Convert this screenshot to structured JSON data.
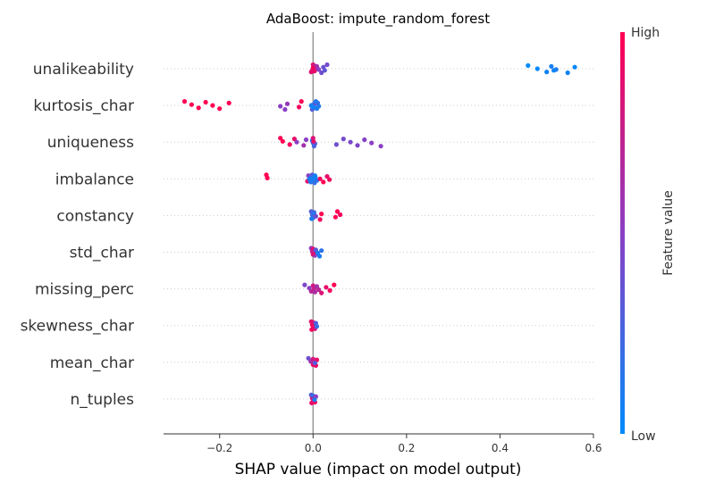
{
  "chart_data": {
    "type": "scatter",
    "title": "AdaBoost: impute_random_forest",
    "xlabel": "SHAP value (impact on model output)",
    "xlim": [
      -0.32,
      0.6
    ],
    "xticks": [
      -0.2,
      0.0,
      0.2,
      0.4,
      0.6
    ],
    "xtick_labels": [
      "−0.2",
      "0.0",
      "0.2",
      "0.4",
      "0.6"
    ],
    "colorbar": {
      "label": "Feature value",
      "high_label": "High",
      "low_label": "Low",
      "low_color": "#008bfb",
      "high_color": "#ff0052"
    },
    "features": [
      {
        "name": "unalikeability",
        "points": [
          {
            "x": 0.0,
            "v": 0.9
          },
          {
            "x": 0.0,
            "v": 0.85
          },
          {
            "x": -0.003,
            "v": 0.8
          },
          {
            "x": 0.002,
            "v": 0.75
          },
          {
            "x": 0.005,
            "v": 0.7
          },
          {
            "x": -0.004,
            "v": 0.88
          },
          {
            "x": 0.008,
            "v": 0.6
          },
          {
            "x": 0.012,
            "v": 0.5
          },
          {
            "x": 0.018,
            "v": 0.4
          },
          {
            "x": 0.022,
            "v": 0.38
          },
          {
            "x": 0.025,
            "v": 0.35
          },
          {
            "x": 0.03,
            "v": 0.42
          },
          {
            "x": 0.0,
            "v": 0.95
          },
          {
            "x": 0.003,
            "v": 0.9
          },
          {
            "x": 0.46,
            "v": 0.0
          },
          {
            "x": 0.48,
            "v": 0.02
          },
          {
            "x": 0.5,
            "v": 0.05
          },
          {
            "x": 0.51,
            "v": 0.08
          },
          {
            "x": 0.52,
            "v": 0.1
          },
          {
            "x": 0.545,
            "v": 0.05
          },
          {
            "x": 0.56,
            "v": 0.02
          },
          {
            "x": 0.515,
            "v": 0.06
          }
        ]
      },
      {
        "name": "kurtosis_char",
        "points": [
          {
            "x": -0.275,
            "v": 1.0
          },
          {
            "x": -0.26,
            "v": 1.0
          },
          {
            "x": -0.245,
            "v": 1.0
          },
          {
            "x": -0.23,
            "v": 1.0
          },
          {
            "x": -0.215,
            "v": 1.0
          },
          {
            "x": -0.2,
            "v": 1.0
          },
          {
            "x": -0.18,
            "v": 1.0
          },
          {
            "x": -0.07,
            "v": 0.5
          },
          {
            "x": -0.06,
            "v": 0.5
          },
          {
            "x": -0.055,
            "v": 0.55
          },
          {
            "x": -0.03,
            "v": 0.95
          },
          {
            "x": -0.025,
            "v": 1.0
          },
          {
            "x": 0.0,
            "v": 0.1
          },
          {
            "x": 0.003,
            "v": 0.15
          },
          {
            "x": 0.005,
            "v": 0.05
          },
          {
            "x": -0.004,
            "v": 0.1
          },
          {
            "x": 0.008,
            "v": 0.1
          },
          {
            "x": 0.01,
            "v": 0.2
          },
          {
            "x": 0.012,
            "v": 0.1
          },
          {
            "x": -0.002,
            "v": 0.3
          },
          {
            "x": 0.004,
            "v": 0.35
          },
          {
            "x": 0.0,
            "v": 0.05
          },
          {
            "x": 0.006,
            "v": 0.12
          }
        ]
      },
      {
        "name": "uniqueness",
        "points": [
          {
            "x": -0.07,
            "v": 1.0
          },
          {
            "x": -0.065,
            "v": 1.0
          },
          {
            "x": -0.05,
            "v": 0.95
          },
          {
            "x": -0.04,
            "v": 0.9
          },
          {
            "x": -0.035,
            "v": 0.5
          },
          {
            "x": -0.02,
            "v": 0.6
          },
          {
            "x": -0.015,
            "v": 0.5
          },
          {
            "x": 0.0,
            "v": 0.2
          },
          {
            "x": 0.002,
            "v": 0.25
          },
          {
            "x": -0.002,
            "v": 0.15
          },
          {
            "x": 0.004,
            "v": 0.3
          },
          {
            "x": 0.0,
            "v": 0.85
          },
          {
            "x": 0.001,
            "v": 0.9
          },
          {
            "x": 0.05,
            "v": 0.4
          },
          {
            "x": 0.065,
            "v": 0.42
          },
          {
            "x": 0.08,
            "v": 0.45
          },
          {
            "x": 0.095,
            "v": 0.46
          },
          {
            "x": 0.11,
            "v": 0.48
          },
          {
            "x": 0.125,
            "v": 0.5
          },
          {
            "x": 0.145,
            "v": 0.5
          }
        ]
      },
      {
        "name": "imbalance",
        "points": [
          {
            "x": -0.1,
            "v": 1.0
          },
          {
            "x": -0.098,
            "v": 1.0
          },
          {
            "x": -0.012,
            "v": 0.9
          },
          {
            "x": -0.01,
            "v": 0.5
          },
          {
            "x": -0.008,
            "v": 0.1
          },
          {
            "x": -0.005,
            "v": 0.15
          },
          {
            "x": -0.003,
            "v": 0.05
          },
          {
            "x": 0.0,
            "v": 0.1
          },
          {
            "x": 0.003,
            "v": 0.2
          },
          {
            "x": 0.005,
            "v": 0.1
          },
          {
            "x": 0.008,
            "v": 0.15
          },
          {
            "x": -0.002,
            "v": 0.3
          },
          {
            "x": 0.002,
            "v": 0.05
          },
          {
            "x": -0.006,
            "v": 0.12
          },
          {
            "x": 0.004,
            "v": 0.08
          },
          {
            "x": 0.015,
            "v": 0.95
          },
          {
            "x": 0.022,
            "v": 1.0
          },
          {
            "x": 0.03,
            "v": 0.9
          },
          {
            "x": 0.035,
            "v": 0.95
          }
        ]
      },
      {
        "name": "constancy",
        "points": [
          {
            "x": -0.004,
            "v": 0.3
          },
          {
            "x": -0.002,
            "v": 0.25
          },
          {
            "x": 0.0,
            "v": 0.2
          },
          {
            "x": 0.002,
            "v": 0.3
          },
          {
            "x": 0.004,
            "v": 0.35
          },
          {
            "x": -0.003,
            "v": 0.1
          },
          {
            "x": 0.001,
            "v": 0.15
          },
          {
            "x": 0.006,
            "v": 0.4
          },
          {
            "x": 0.015,
            "v": 0.95
          },
          {
            "x": 0.018,
            "v": 1.0
          },
          {
            "x": 0.048,
            "v": 1.0
          },
          {
            "x": 0.052,
            "v": 1.0
          },
          {
            "x": 0.058,
            "v": 0.95
          }
        ]
      },
      {
        "name": "std_char",
        "points": [
          {
            "x": -0.004,
            "v": 0.5
          },
          {
            "x": -0.002,
            "v": 0.7
          },
          {
            "x": 0.0,
            "v": 0.8
          },
          {
            "x": 0.0,
            "v": 0.9
          },
          {
            "x": 0.002,
            "v": 0.6
          },
          {
            "x": 0.004,
            "v": 0.5
          },
          {
            "x": 0.006,
            "v": 0.3
          },
          {
            "x": 0.01,
            "v": 0.1
          },
          {
            "x": 0.014,
            "v": 0.1
          },
          {
            "x": 0.018,
            "v": 0.15
          },
          {
            "x": 0.0,
            "v": 0.85
          }
        ]
      },
      {
        "name": "missing_perc",
        "points": [
          {
            "x": -0.018,
            "v": 0.45
          },
          {
            "x": -0.008,
            "v": 0.5
          },
          {
            "x": -0.004,
            "v": 0.7
          },
          {
            "x": 0.0,
            "v": 0.8
          },
          {
            "x": 0.002,
            "v": 0.75
          },
          {
            "x": 0.004,
            "v": 0.65
          },
          {
            "x": 0.008,
            "v": 0.6
          },
          {
            "x": 0.012,
            "v": 0.7
          },
          {
            "x": 0.018,
            "v": 0.85
          },
          {
            "x": 0.028,
            "v": 0.9
          },
          {
            "x": 0.036,
            "v": 0.95
          },
          {
            "x": 0.045,
            "v": 1.0
          }
        ]
      },
      {
        "name": "skewness_char",
        "points": [
          {
            "x": -0.004,
            "v": 0.9
          },
          {
            "x": -0.002,
            "v": 0.95
          },
          {
            "x": 0.0,
            "v": 1.0
          },
          {
            "x": 0.0,
            "v": 0.85
          },
          {
            "x": 0.002,
            "v": 0.9
          },
          {
            "x": 0.004,
            "v": 0.8
          },
          {
            "x": 0.006,
            "v": 0.3
          },
          {
            "x": 0.008,
            "v": 0.2
          },
          {
            "x": -0.003,
            "v": 0.95
          }
        ]
      },
      {
        "name": "mean_char",
        "points": [
          {
            "x": -0.01,
            "v": 0.4
          },
          {
            "x": -0.005,
            "v": 0.6
          },
          {
            "x": 0.0,
            "v": 0.9
          },
          {
            "x": 0.0,
            "v": 0.8
          },
          {
            "x": 0.003,
            "v": 0.7
          },
          {
            "x": 0.006,
            "v": 0.95
          },
          {
            "x": 0.008,
            "v": 0.9
          },
          {
            "x": 0.004,
            "v": 0.3
          }
        ]
      },
      {
        "name": "n_tuples",
        "points": [
          {
            "x": -0.004,
            "v": 0.3
          },
          {
            "x": -0.002,
            "v": 0.8
          },
          {
            "x": 0.0,
            "v": 0.9
          },
          {
            "x": 0.0,
            "v": 0.2
          },
          {
            "x": 0.002,
            "v": 0.7
          },
          {
            "x": 0.004,
            "v": 0.95
          },
          {
            "x": 0.006,
            "v": 0.5
          },
          {
            "x": 0.003,
            "v": 0.1
          },
          {
            "x": -0.003,
            "v": 0.9
          }
        ]
      }
    ]
  }
}
